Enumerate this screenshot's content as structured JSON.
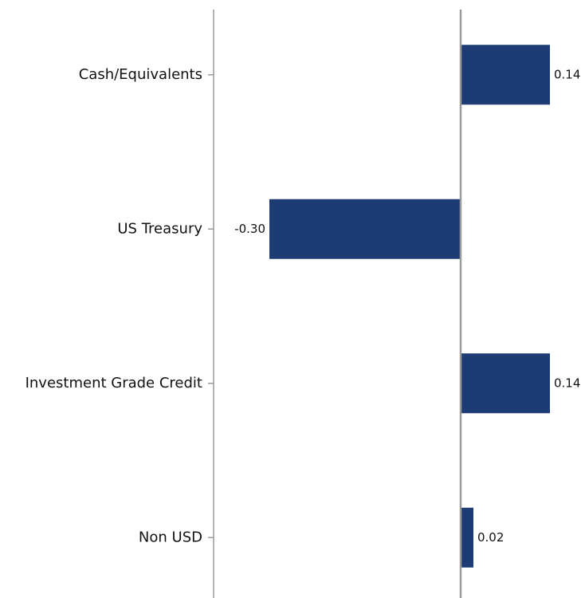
{
  "chart_data": {
    "type": "hbar",
    "categories": [
      "Cash/Equivalents",
      "US Treasury",
      "Investment Grade Credit",
      "Non USD"
    ],
    "values": [
      0.14,
      -0.3,
      0.14,
      0.02
    ],
    "value_labels": [
      "0.14",
      "-0.30",
      "0.14",
      "0.02"
    ],
    "color": "#1d3c74",
    "xlim": [
      -0.3875,
      0.195
    ]
  }
}
